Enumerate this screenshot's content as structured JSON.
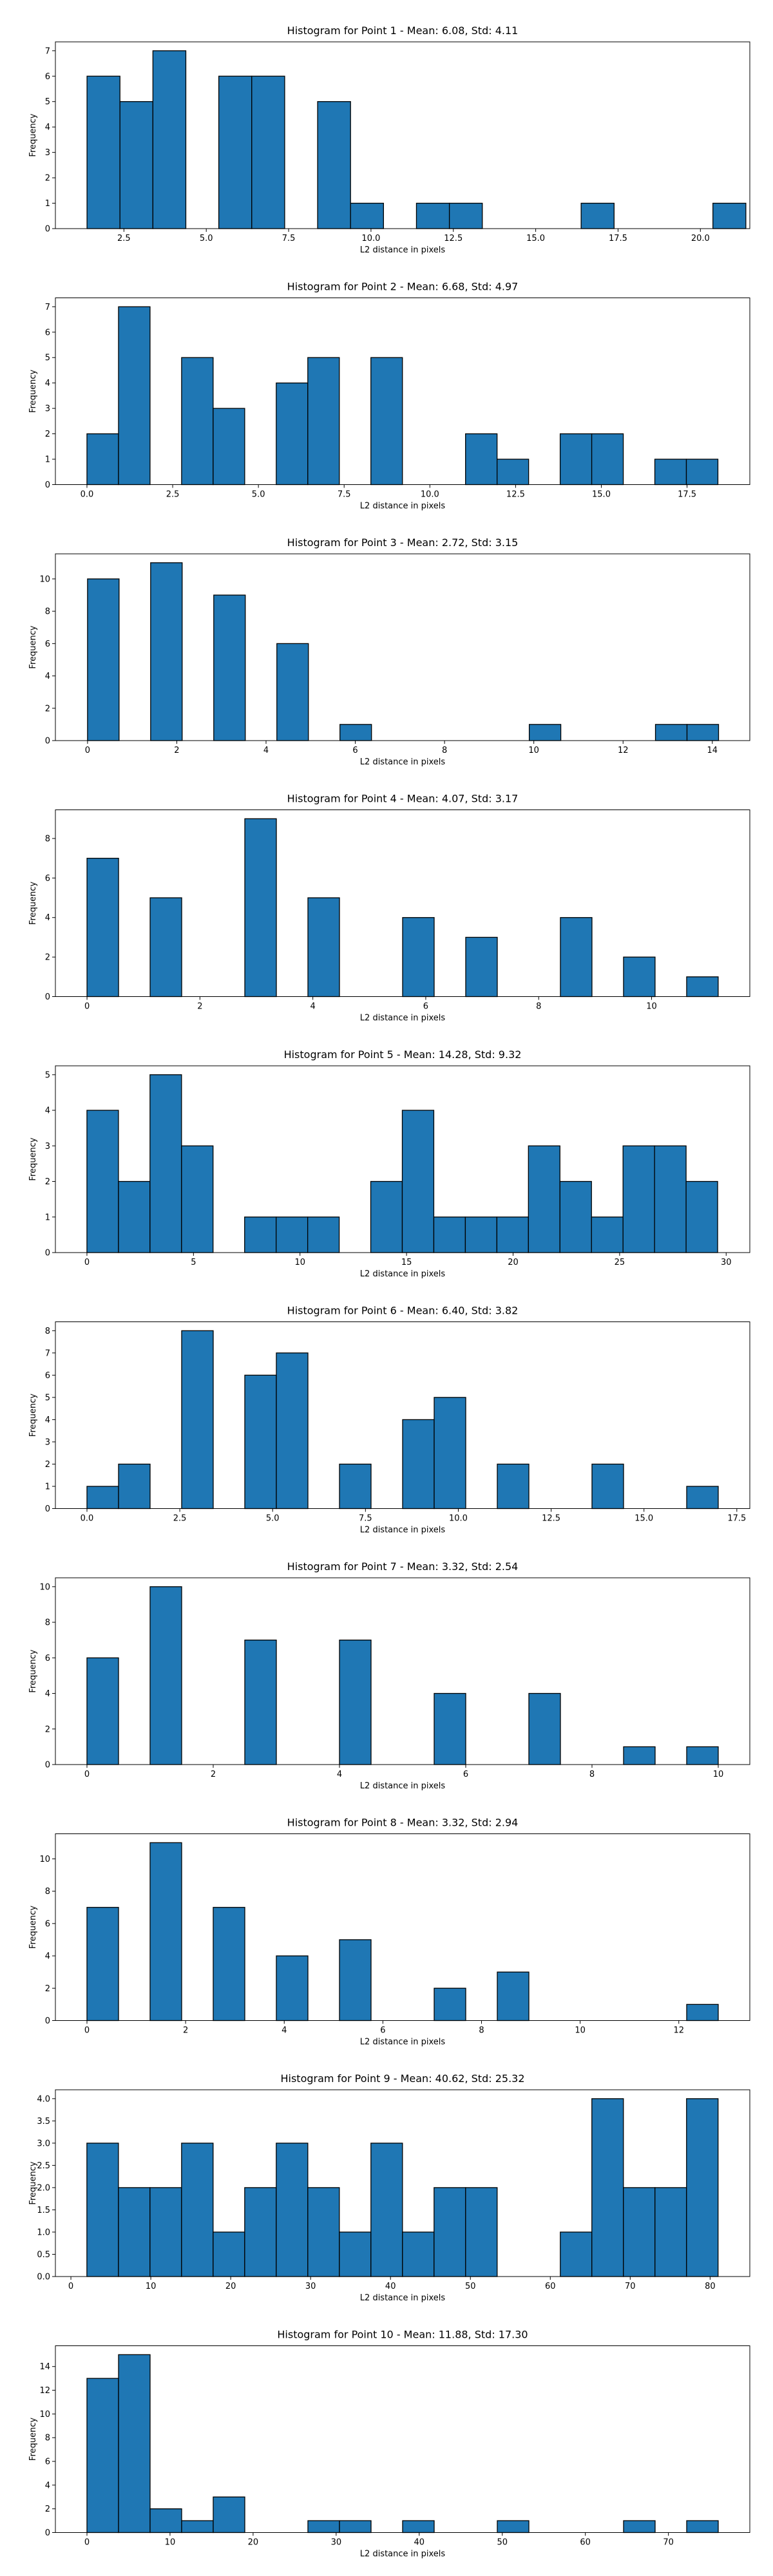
{
  "chart_data": [
    {
      "type": "bar",
      "title": "Histogram for Point 1 - Mean: 6.08, Std: 4.11",
      "xlabel": "L2 distance in pixels",
      "ylabel": "Frequency",
      "xlim": [
        0.42,
        21.5
      ],
      "ylim": [
        0,
        7.35
      ],
      "xticks": [
        2.5,
        5.0,
        7.5,
        10.0,
        12.5,
        15.0,
        17.5,
        20.0
      ],
      "xtick_labels": [
        "2.5",
        "5.0",
        "7.5",
        "10.0",
        "12.5",
        "15.0",
        "17.5",
        "20.0"
      ],
      "yticks": [
        0,
        1,
        2,
        3,
        4,
        5,
        6,
        7
      ],
      "ytick_labels": [
        "0",
        "1",
        "2",
        "3",
        "4",
        "5",
        "6",
        "7"
      ],
      "bin_edges": [
        1.38,
        2.38,
        3.38,
        4.38,
        5.38,
        6.38,
        7.38,
        8.38,
        9.38,
        10.38,
        11.38,
        12.38,
        13.38,
        14.38,
        15.38,
        16.38,
        17.38,
        18.38,
        19.38,
        20.38,
        21.38
      ],
      "counts": [
        6,
        5,
        7,
        0,
        6,
        6,
        0,
        5,
        1,
        0,
        1,
        1,
        0,
        0,
        0,
        1,
        0,
        0,
        0,
        1
      ],
      "bar_color": "#1f77b4",
      "edge_color": "#000000"
    },
    {
      "type": "bar",
      "title": "Histogram for Point 2 - Mean: 6.68, Std: 4.97",
      "xlabel": "L2 distance in pixels",
      "ylabel": "Frequency",
      "xlim": [
        -0.92,
        19.33
      ],
      "ylim": [
        0,
        7.35
      ],
      "xticks": [
        0.0,
        2.5,
        5.0,
        7.5,
        10.0,
        12.5,
        15.0,
        17.5
      ],
      "xtick_labels": [
        "0.0",
        "2.5",
        "5.0",
        "7.5",
        "10.0",
        "12.5",
        "15.0",
        "17.5"
      ],
      "yticks": [
        0,
        1,
        2,
        3,
        4,
        5,
        6,
        7
      ],
      "ytick_labels": [
        "0",
        "1",
        "2",
        "3",
        "4",
        "5",
        "6",
        "7"
      ],
      "bin_edges": [
        0.0,
        0.92,
        1.84,
        2.76,
        3.68,
        4.6,
        5.52,
        6.44,
        7.36,
        8.28,
        9.2,
        10.12,
        11.04,
        11.96,
        12.88,
        13.8,
        14.72,
        15.64,
        16.56,
        17.48,
        18.4
      ],
      "counts": [
        2,
        7,
        0,
        5,
        3,
        0,
        4,
        5,
        0,
        5,
        0,
        0,
        2,
        1,
        0,
        2,
        2,
        0,
        1,
        1
      ],
      "bar_color": "#1f77b4",
      "edge_color": "#000000"
    },
    {
      "type": "bar",
      "title": "Histogram for Point 3 - Mean: 2.72, Std: 3.15",
      "xlabel": "L2 distance in pixels",
      "ylabel": "Frequency",
      "xlim": [
        -0.72,
        14.84
      ],
      "ylim": [
        0,
        11.55
      ],
      "xticks": [
        0,
        2,
        4,
        6,
        8,
        10,
        12,
        14
      ],
      "xtick_labels": [
        "0",
        "2",
        "4",
        "6",
        "8",
        "10",
        "12",
        "14"
      ],
      "yticks": [
        0,
        2,
        4,
        6,
        8,
        10
      ],
      "ytick_labels": [
        "0",
        "2",
        "4",
        "6",
        "8",
        "10"
      ],
      "bin_edges": [
        0.0,
        0.707,
        1.414,
        2.121,
        2.828,
        3.535,
        4.242,
        4.949,
        5.656,
        6.363,
        7.07,
        7.777,
        8.484,
        9.191,
        9.898,
        10.605,
        11.312,
        12.019,
        12.726,
        13.433,
        14.14
      ],
      "counts": [
        10,
        0,
        11,
        0,
        9,
        0,
        6,
        0,
        1,
        0,
        0,
        0,
        0,
        0,
        1,
        0,
        0,
        0,
        1,
        1
      ],
      "bar_color": "#1f77b4",
      "edge_color": "#000000"
    },
    {
      "type": "bar",
      "title": "Histogram for Point 4 - Mean: 4.07, Std: 3.17",
      "xlabel": "L2 distance in pixels",
      "ylabel": "Frequency",
      "xlim": [
        -0.56,
        11.74
      ],
      "ylim": [
        0,
        9.45
      ],
      "xticks": [
        0,
        2,
        4,
        6,
        8,
        10
      ],
      "xtick_labels": [
        "0",
        "2",
        "4",
        "6",
        "8",
        "10"
      ],
      "yticks": [
        0,
        2,
        4,
        6,
        8
      ],
      "ytick_labels": [
        "0",
        "2",
        "4",
        "6",
        "8"
      ],
      "bin_edges": [
        0.0,
        0.559,
        1.118,
        1.677,
        2.236,
        2.795,
        3.354,
        3.913,
        4.472,
        5.031,
        5.59,
        6.149,
        6.708,
        7.267,
        7.826,
        8.385,
        8.944,
        9.503,
        10.062,
        10.621,
        11.18
      ],
      "counts": [
        7,
        0,
        5,
        0,
        0,
        9,
        0,
        5,
        0,
        0,
        4,
        0,
        3,
        0,
        0,
        4,
        0,
        2,
        0,
        1
      ],
      "bar_color": "#1f77b4",
      "edge_color": "#000000"
    },
    {
      "type": "bar",
      "title": "Histogram for Point 5 - Mean: 14.28, Std: 9.32",
      "xlabel": "L2 distance in pixels",
      "ylabel": "Frequency",
      "xlim": [
        -1.48,
        31.11
      ],
      "ylim": [
        0,
        5.25
      ],
      "xticks": [
        0,
        5,
        10,
        15,
        20,
        25,
        30
      ],
      "xtick_labels": [
        "0",
        "5",
        "10",
        "15",
        "20",
        "25",
        "30"
      ],
      "yticks": [
        0,
        1,
        2,
        3,
        4,
        5
      ],
      "ytick_labels": [
        "0",
        "1",
        "2",
        "3",
        "4",
        "5"
      ],
      "bin_edges": [
        0.0,
        1.48,
        2.96,
        4.44,
        5.92,
        7.4,
        8.88,
        10.36,
        11.84,
        13.32,
        14.8,
        16.28,
        17.76,
        19.24,
        20.72,
        22.2,
        23.68,
        25.16,
        26.64,
        28.12,
        29.6
      ],
      "counts": [
        4,
        2,
        5,
        3,
        0,
        1,
        1,
        1,
        0,
        2,
        4,
        1,
        1,
        1,
        3,
        2,
        1,
        3,
        3,
        2
      ],
      "bar_color": "#1f77b4",
      "edge_color": "#000000"
    },
    {
      "type": "bar",
      "title": "Histogram for Point 6 - Mean: 6.40, Std: 3.82",
      "xlabel": "L2 distance in pixels",
      "ylabel": "Frequency",
      "xlim": [
        -0.85,
        17.85
      ],
      "ylim": [
        0,
        8.4
      ],
      "xticks": [
        0.0,
        2.5,
        5.0,
        7.5,
        10.0,
        12.5,
        15.0,
        17.5
      ],
      "xtick_labels": [
        "0.0",
        "2.5",
        "5.0",
        "7.5",
        "10.0",
        "12.5",
        "15.0",
        "17.5"
      ],
      "yticks": [
        0,
        1,
        2,
        3,
        4,
        5,
        6,
        7,
        8
      ],
      "ytick_labels": [
        "0",
        "1",
        "2",
        "3",
        "4",
        "5",
        "6",
        "7",
        "8"
      ],
      "bin_edges": [
        0.0,
        0.85,
        1.7,
        2.55,
        3.4,
        4.25,
        5.1,
        5.95,
        6.8,
        7.65,
        8.5,
        9.35,
        10.2,
        11.05,
        11.9,
        12.75,
        13.6,
        14.45,
        15.3,
        16.15,
        17.0
      ],
      "counts": [
        1,
        2,
        0,
        8,
        0,
        6,
        7,
        0,
        2,
        0,
        4,
        5,
        0,
        2,
        0,
        0,
        2,
        0,
        0,
        1
      ],
      "bar_color": "#1f77b4",
      "edge_color": "#000000"
    },
    {
      "type": "bar",
      "title": "Histogram for Point 7 - Mean: 3.32, Std: 2.54",
      "xlabel": "L2 distance in pixels",
      "ylabel": "Frequency",
      "xlim": [
        -0.5,
        10.5
      ],
      "ylim": [
        0,
        10.5
      ],
      "xticks": [
        0,
        2,
        4,
        6,
        8,
        10
      ],
      "xtick_labels": [
        "0",
        "2",
        "4",
        "6",
        "8",
        "10"
      ],
      "yticks": [
        0,
        2,
        4,
        6,
        8,
        10
      ],
      "ytick_labels": [
        "0",
        "2",
        "4",
        "6",
        "8",
        "10"
      ],
      "bin_edges": [
        0.0,
        0.5,
        1.0,
        1.5,
        2.0,
        2.5,
        3.0,
        3.5,
        4.0,
        4.5,
        5.0,
        5.5,
        6.0,
        6.5,
        7.0,
        7.5,
        8.0,
        8.5,
        9.0,
        9.5,
        10.0
      ],
      "counts": [
        6,
        0,
        10,
        0,
        0,
        7,
        0,
        0,
        7,
        0,
        0,
        4,
        0,
        0,
        4,
        0,
        0,
        1,
        0,
        1
      ],
      "bar_color": "#1f77b4",
      "edge_color": "#000000"
    },
    {
      "type": "bar",
      "title": "Histogram for Point 8 - Mean: 3.32, Std: 2.94",
      "xlabel": "L2 distance in pixels",
      "ylabel": "Frequency",
      "xlim": [
        -0.64,
        13.44
      ],
      "ylim": [
        0,
        11.55
      ],
      "xticks": [
        0,
        2,
        4,
        6,
        8,
        10,
        12
      ],
      "xtick_labels": [
        "0",
        "2",
        "4",
        "6",
        "8",
        "10",
        "12"
      ],
      "yticks": [
        0,
        2,
        4,
        6,
        8,
        10
      ],
      "ytick_labels": [
        "0",
        "2",
        "4",
        "6",
        "8",
        "10"
      ],
      "bin_edges": [
        0.0,
        0.64,
        1.28,
        1.92,
        2.56,
        3.2,
        3.84,
        4.48,
        5.12,
        5.76,
        6.4,
        7.04,
        7.68,
        8.32,
        8.96,
        9.6,
        10.24,
        10.88,
        11.52,
        12.16,
        12.8
      ],
      "counts": [
        7,
        0,
        11,
        0,
        7,
        0,
        4,
        0,
        5,
        0,
        0,
        2,
        0,
        3,
        0,
        0,
        0,
        0,
        0,
        1
      ],
      "bar_color": "#1f77b4",
      "edge_color": "#000000"
    },
    {
      "type": "bar",
      "title": "Histogram for Point 9 - Mean: 40.62, Std: 25.32",
      "xlabel": "L2 distance in pixels",
      "ylabel": "Frequency",
      "xlim": [
        -1.94,
        84.97
      ],
      "ylim": [
        0,
        4.2
      ],
      "xticks": [
        0,
        10,
        20,
        30,
        40,
        50,
        60,
        70,
        80
      ],
      "xtick_labels": [
        "0",
        "10",
        "20",
        "30",
        "40",
        "50",
        "60",
        "70",
        "80"
      ],
      "yticks": [
        0.0,
        0.5,
        1.0,
        1.5,
        2.0,
        2.5,
        3.0,
        3.5,
        4.0
      ],
      "ytick_labels": [
        "0.0",
        "0.5",
        "1.0",
        "1.5",
        "2.0",
        "2.5",
        "3.0",
        "3.5",
        "4.0"
      ],
      "bin_edges": [
        2.0,
        5.95,
        9.9,
        13.85,
        17.8,
        21.75,
        25.7,
        29.65,
        33.6,
        37.55,
        41.5,
        45.45,
        49.4,
        53.35,
        57.3,
        61.25,
        65.2,
        69.15,
        73.1,
        77.05,
        81.0
      ],
      "counts": [
        3,
        2,
        2,
        3,
        1,
        2,
        3,
        2,
        1,
        3,
        1,
        2,
        2,
        0,
        0,
        1,
        4,
        2,
        2,
        4
      ],
      "bar_color": "#1f77b4",
      "edge_color": "#000000"
    },
    {
      "type": "bar",
      "title": "Histogram for Point 10 - Mean: 11.88, Std: 17.30",
      "xlabel": "L2 distance in pixels",
      "ylabel": "Frequency",
      "xlim": [
        -3.8,
        79.8
      ],
      "ylim": [
        0,
        15.75
      ],
      "xticks": [
        0,
        10,
        20,
        30,
        40,
        50,
        60,
        70
      ],
      "xtick_labels": [
        "0",
        "10",
        "20",
        "30",
        "40",
        "50",
        "60",
        "70"
      ],
      "yticks": [
        0,
        2,
        4,
        6,
        8,
        10,
        12,
        14
      ],
      "ytick_labels": [
        "0",
        "2",
        "4",
        "6",
        "8",
        "10",
        "12",
        "14"
      ],
      "bin_edges": [
        0.0,
        3.8,
        7.6,
        11.4,
        15.2,
        19.0,
        22.8,
        26.6,
        30.4,
        34.2,
        38.0,
        41.8,
        45.6,
        49.4,
        53.2,
        57.0,
        60.8,
        64.6,
        68.4,
        72.2,
        76.0
      ],
      "counts": [
        13,
        15,
        2,
        1,
        3,
        0,
        0,
        1,
        1,
        0,
        1,
        0,
        0,
        1,
        0,
        0,
        0,
        1,
        0,
        1
      ],
      "bar_color": "#1f77b4",
      "edge_color": "#000000"
    }
  ]
}
